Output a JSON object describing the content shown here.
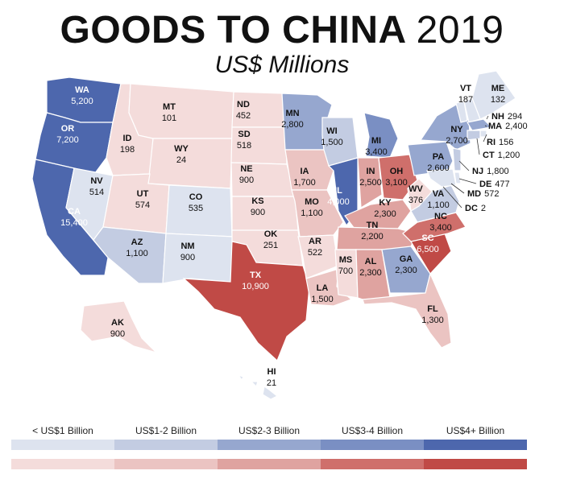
{
  "title": {
    "main": "GOODS TO CHINA",
    "year": "2019"
  },
  "subtitle": "US$ Millions",
  "colors": {
    "blue": [
      "#dde3ef",
      "#c3cce2",
      "#96a7cf",
      "#7a8fc3",
      "#4d67ad"
    ],
    "red": [
      "#f4dcdb",
      "#ebc4c2",
      "#dfa3a0",
      "#cf6f6b",
      "#c04a46"
    ]
  },
  "legend": [
    {
      "label": "< US$1 Billion"
    },
    {
      "label": "US$1-2 Billion"
    },
    {
      "label": "US$2-3 Billion"
    },
    {
      "label": "US$3-4 Billion"
    },
    {
      "label": "US$4+ Billion"
    }
  ],
  "states": [
    {
      "code": "WA",
      "value": "5,200",
      "party": "blue",
      "tier": 4
    },
    {
      "code": "OR",
      "value": "7,200",
      "party": "blue",
      "tier": 4
    },
    {
      "code": "CA",
      "value": "15,400",
      "party": "blue",
      "tier": 4
    },
    {
      "code": "NV",
      "value": "514",
      "party": "blue",
      "tier": 0
    },
    {
      "code": "ID",
      "value": "198",
      "party": "red",
      "tier": 0
    },
    {
      "code": "MT",
      "value": "101",
      "party": "red",
      "tier": 0
    },
    {
      "code": "WY",
      "value": "24",
      "party": "red",
      "tier": 0
    },
    {
      "code": "UT",
      "value": "574",
      "party": "red",
      "tier": 0
    },
    {
      "code": "AZ",
      "value": "1,100",
      "party": "blue",
      "tier": 1
    },
    {
      "code": "CO",
      "value": "535",
      "party": "blue",
      "tier": 0
    },
    {
      "code": "NM",
      "value": "900",
      "party": "blue",
      "tier": 0
    },
    {
      "code": "ND",
      "value": "452",
      "party": "red",
      "tier": 0
    },
    {
      "code": "SD",
      "value": "518",
      "party": "red",
      "tier": 0
    },
    {
      "code": "NE",
      "value": "900",
      "party": "red",
      "tier": 0
    },
    {
      "code": "KS",
      "value": "900",
      "party": "red",
      "tier": 0
    },
    {
      "code": "OK",
      "value": "251",
      "party": "red",
      "tier": 0
    },
    {
      "code": "TX",
      "value": "10,900",
      "party": "red",
      "tier": 4
    },
    {
      "code": "MN",
      "value": "2,800",
      "party": "blue",
      "tier": 2
    },
    {
      "code": "IA",
      "value": "1,700",
      "party": "red",
      "tier": 1
    },
    {
      "code": "MO",
      "value": "1,100",
      "party": "red",
      "tier": 1
    },
    {
      "code": "AR",
      "value": "522",
      "party": "red",
      "tier": 0
    },
    {
      "code": "LA",
      "value": "1,500",
      "party": "red",
      "tier": 1
    },
    {
      "code": "WI",
      "value": "1,500",
      "party": "blue",
      "tier": 1
    },
    {
      "code": "IL",
      "value": "4,000",
      "party": "blue",
      "tier": 4
    },
    {
      "code": "MI",
      "value": "3,400",
      "party": "blue",
      "tier": 3
    },
    {
      "code": "IN",
      "value": "2,500",
      "party": "red",
      "tier": 2
    },
    {
      "code": "OH",
      "value": "3,100",
      "party": "red",
      "tier": 3
    },
    {
      "code": "KY",
      "value": "2,300",
      "party": "red",
      "tier": 2
    },
    {
      "code": "TN",
      "value": "2,200",
      "party": "red",
      "tier": 2
    },
    {
      "code": "MS",
      "value": "700",
      "party": "red",
      "tier": 0
    },
    {
      "code": "AL",
      "value": "2,300",
      "party": "red",
      "tier": 2
    },
    {
      "code": "GA",
      "value": "2,300",
      "party": "blue",
      "tier": 2
    },
    {
      "code": "FL",
      "value": "1,300",
      "party": "red",
      "tier": 1
    },
    {
      "code": "SC",
      "value": "6,500",
      "party": "red",
      "tier": 4
    },
    {
      "code": "NC",
      "value": "3,400",
      "party": "red",
      "tier": 3
    },
    {
      "code": "VA",
      "value": "1,100",
      "party": "blue",
      "tier": 1
    },
    {
      "code": "WV",
      "value": "376",
      "party": "red",
      "tier": 0
    },
    {
      "code": "PA",
      "value": "2,600",
      "party": "blue",
      "tier": 2
    },
    {
      "code": "NY",
      "value": "2,700",
      "party": "blue",
      "tier": 2
    },
    {
      "code": "VT",
      "value": "187",
      "party": "blue",
      "tier": 0
    },
    {
      "code": "ME",
      "value": "132",
      "party": "blue",
      "tier": 0
    },
    {
      "code": "NH",
      "value": "294",
      "party": "blue",
      "tier": 0
    },
    {
      "code": "MA",
      "value": "2,400",
      "party": "blue",
      "tier": 2
    },
    {
      "code": "RI",
      "value": "156",
      "party": "blue",
      "tier": 0
    },
    {
      "code": "CT",
      "value": "1,200",
      "party": "blue",
      "tier": 1
    },
    {
      "code": "NJ",
      "value": "1,800",
      "party": "blue",
      "tier": 1
    },
    {
      "code": "DE",
      "value": "477",
      "party": "blue",
      "tier": 0
    },
    {
      "code": "MD",
      "value": "572",
      "party": "blue",
      "tier": 0
    },
    {
      "code": "DC",
      "value": "2",
      "party": "blue",
      "tier": 0
    },
    {
      "code": "AK",
      "value": "900",
      "party": "red",
      "tier": 0
    },
    {
      "code": "HI",
      "value": "21",
      "party": "blue",
      "tier": 0
    }
  ]
}
